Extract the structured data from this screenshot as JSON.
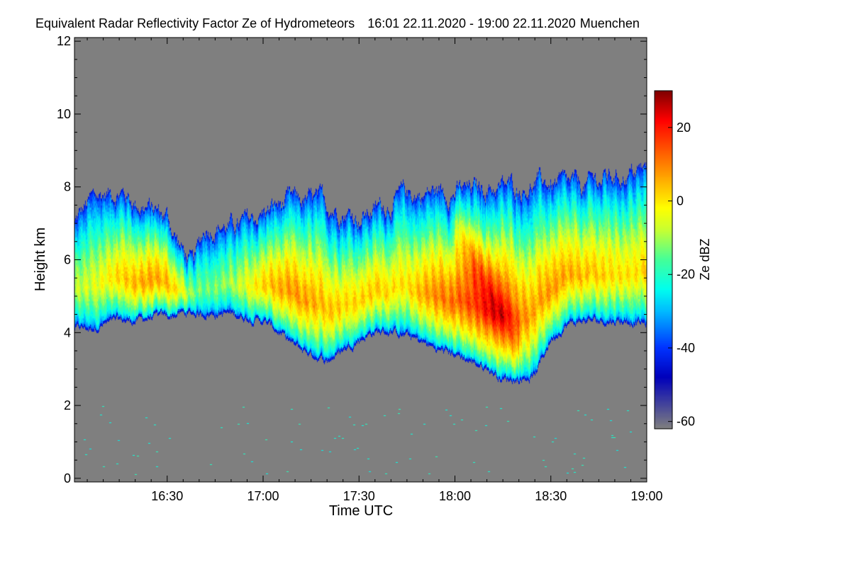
{
  "chart_data": {
    "type": "heatmap",
    "title": "Equivalent Radar Reflectivity Factor Ze of Hydrometeors",
    "time_range": "16:01 22.11.2020 - 19:00 22.11.2020",
    "location": "Muenchen",
    "xlabel": "Time UTC",
    "ylabel": "Height km",
    "x_unit": "minutes since 16:00 UTC",
    "xlim": [
      1,
      180
    ],
    "ylim": [
      -0.1,
      12.1
    ],
    "x_ticks": [
      {
        "value": 30,
        "label": "16:30"
      },
      {
        "value": 60,
        "label": "17:00"
      },
      {
        "value": 90,
        "label": "17:30"
      },
      {
        "value": 120,
        "label": "18:00"
      },
      {
        "value": 150,
        "label": "18:30"
      },
      {
        "value": 180,
        "label": "19:00"
      }
    ],
    "y_ticks": [
      {
        "value": 0,
        "label": "0"
      },
      {
        "value": 2,
        "label": "2"
      },
      {
        "value": 4,
        "label": "4"
      },
      {
        "value": 6,
        "label": "6"
      },
      {
        "value": 8,
        "label": "8"
      },
      {
        "value": 10,
        "label": "10"
      },
      {
        "value": 12,
        "label": "12"
      }
    ],
    "background_color": "#7f7f7f",
    "colorbar": {
      "label": "Ze dBZ",
      "range": [
        -62,
        30
      ],
      "ticks": [
        {
          "value": 20,
          "label": "20"
        },
        {
          "value": 0,
          "label": "0"
        },
        {
          "value": -20,
          "label": "-20"
        },
        {
          "value": -40,
          "label": "-40"
        },
        {
          "value": -60,
          "label": "-60"
        }
      ],
      "stops": [
        {
          "value": -62,
          "color": "#7f7f7f"
        },
        {
          "value": -48,
          "color": "#0000bb"
        },
        {
          "value": -40,
          "color": "#0033ff"
        },
        {
          "value": -30,
          "color": "#00bbff"
        },
        {
          "value": -24,
          "color": "#00ffee"
        },
        {
          "value": -16,
          "color": "#44ff99"
        },
        {
          "value": -8,
          "color": "#c6ff33"
        },
        {
          "value": -2,
          "color": "#ffff00"
        },
        {
          "value": 6,
          "color": "#ffaa00"
        },
        {
          "value": 14,
          "color": "#ff5500"
        },
        {
          "value": 22,
          "color": "#ff0000"
        },
        {
          "value": 30,
          "color": "#7f0000"
        }
      ]
    },
    "cloud_profile": [
      {
        "t": 1,
        "base": 4.1,
        "top": 7.0,
        "peak": -8
      },
      {
        "t": 6,
        "base": 4.1,
        "top": 7.6,
        "peak": -6
      },
      {
        "t": 10,
        "base": 4.2,
        "top": 7.8,
        "peak": -3
      },
      {
        "t": 15,
        "base": 4.3,
        "top": 7.9,
        "peak": 2
      },
      {
        "t": 20,
        "base": 4.3,
        "top": 7.6,
        "peak": 5
      },
      {
        "t": 25,
        "base": 4.4,
        "top": 7.4,
        "peak": 7
      },
      {
        "t": 30,
        "base": 4.4,
        "top": 7.2,
        "peak": 5
      },
      {
        "t": 34,
        "base": 4.5,
        "top": 6.4,
        "peak": -2
      },
      {
        "t": 38,
        "base": 4.5,
        "top": 5.8,
        "peak": -12
      },
      {
        "t": 42,
        "base": 4.5,
        "top": 6.9,
        "peak": -14
      },
      {
        "t": 46,
        "base": 4.5,
        "top": 7.0,
        "peak": -12
      },
      {
        "t": 50,
        "base": 4.5,
        "top": 6.9,
        "peak": -10
      },
      {
        "t": 55,
        "base": 4.4,
        "top": 7.0,
        "peak": -4
      },
      {
        "t": 60,
        "base": 4.3,
        "top": 7.3,
        "peak": 2
      },
      {
        "t": 65,
        "base": 4.0,
        "top": 7.5,
        "peak": 6
      },
      {
        "t": 70,
        "base": 3.6,
        "top": 7.6,
        "peak": 8
      },
      {
        "t": 75,
        "base": 3.4,
        "top": 7.6,
        "peak": 6
      },
      {
        "t": 80,
        "base": 3.2,
        "top": 7.5,
        "peak": 4
      },
      {
        "t": 85,
        "base": 3.5,
        "top": 7.4,
        "peak": 2
      },
      {
        "t": 90,
        "base": 3.8,
        "top": 7.2,
        "peak": 2
      },
      {
        "t": 95,
        "base": 4.0,
        "top": 7.4,
        "peak": 3
      },
      {
        "t": 100,
        "base": 4.0,
        "top": 7.6,
        "peak": 1
      },
      {
        "t": 105,
        "base": 3.9,
        "top": 7.8,
        "peak": 0
      },
      {
        "t": 110,
        "base": 3.7,
        "top": 7.8,
        "peak": 6
      },
      {
        "t": 115,
        "base": 3.5,
        "top": 7.9,
        "peak": 10
      },
      {
        "t": 120,
        "base": 3.4,
        "top": 7.9,
        "peak": 12
      },
      {
        "t": 125,
        "base": 3.2,
        "top": 7.9,
        "peak": 16
      },
      {
        "t": 130,
        "base": 3.0,
        "top": 8.0,
        "peak": 18
      },
      {
        "t": 135,
        "base": 2.7,
        "top": 8.0,
        "peak": 16
      },
      {
        "t": 140,
        "base": 2.7,
        "top": 8.0,
        "peak": 10
      },
      {
        "t": 145,
        "base": 2.8,
        "top": 8.1,
        "peak": 6
      },
      {
        "t": 150,
        "base": 3.8,
        "top": 8.1,
        "peak": 8
      },
      {
        "t": 155,
        "base": 4.2,
        "top": 8.0,
        "peak": 6
      },
      {
        "t": 160,
        "base": 4.3,
        "top": 8.0,
        "peak": 4
      },
      {
        "t": 165,
        "base": 4.3,
        "top": 8.2,
        "peak": 3
      },
      {
        "t": 170,
        "base": 4.3,
        "top": 8.3,
        "peak": 1
      },
      {
        "t": 175,
        "base": 4.3,
        "top": 8.4,
        "peak": 0
      },
      {
        "t": 180,
        "base": 4.2,
        "top": 8.5,
        "peak": 2
      }
    ]
  }
}
